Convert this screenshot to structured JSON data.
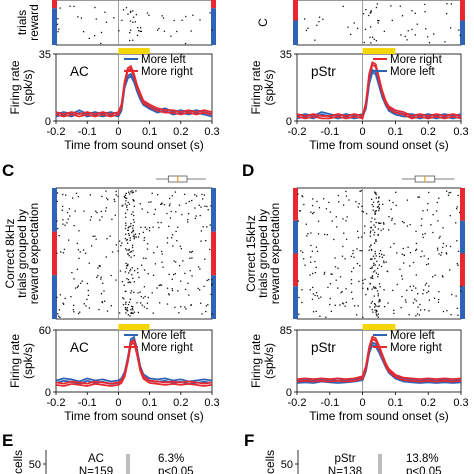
{
  "colors": {
    "left": "#2f63b5",
    "right": "#e8282e",
    "sound_bar": "#f4d60a",
    "dot": "#111111"
  },
  "chart_data": [
    {
      "panel": "",
      "type": "line",
      "region": "AC",
      "raster_ylabel": [
        "",
        "trials",
        "reward"
      ],
      "raster_block_colors": [
        "right",
        "left"
      ],
      "raster_block_sizes": [
        1,
        3
      ],
      "xlabel": "Time from sound onset (s)",
      "ylabel": [
        "Firing rate",
        "(spk/s)"
      ],
      "xlim": [
        -0.2,
        0.3
      ],
      "ylim": [
        0,
        35
      ],
      "xticks": [
        "-0.2",
        "-0.1",
        "0",
        "0.1",
        "0.2",
        "0.3"
      ],
      "yticks": [
        "0",
        "35"
      ],
      "legend": [
        "More left",
        "More right"
      ],
      "sound_bar": [
        0,
        0.1
      ],
      "x": [
        -0.2,
        -0.175,
        -0.15,
        -0.125,
        -0.1,
        -0.075,
        -0.05,
        -0.025,
        0,
        0.01,
        0.02,
        0.03,
        0.04,
        0.05,
        0.06,
        0.07,
        0.08,
        0.1,
        0.125,
        0.15,
        0.175,
        0.2,
        0.225,
        0.25,
        0.275,
        0.3
      ],
      "series": [
        {
          "name": "More left",
          "color": "left",
          "values": [
            3,
            4,
            3,
            5,
            3,
            4,
            3,
            4,
            3,
            6,
            18,
            23,
            24,
            21,
            16,
            12,
            9,
            7,
            5,
            6,
            4,
            5,
            4,
            5,
            4,
            3
          ]
        },
        {
          "name": "More right",
          "color": "right",
          "values": [
            4,
            3,
            4,
            3,
            4,
            3,
            4,
            3,
            4,
            8,
            20,
            27,
            28,
            24,
            18,
            14,
            10,
            8,
            6,
            5,
            5,
            4,
            5,
            4,
            5,
            4
          ]
        }
      ]
    },
    {
      "panel": "",
      "type": "line",
      "region": "pStr",
      "raster_ylabel": [
        "",
        "C"
      ],
      "raster_block_colors": [
        "right",
        "left"
      ],
      "raster_block_sizes": [
        1,
        1
      ],
      "xlabel": "Time from sound onset (s)",
      "ylabel": [
        "Firing rate",
        "(spk/s)"
      ],
      "xlim": [
        -0.2,
        0.3
      ],
      "ylim": [
        0,
        35
      ],
      "xticks": [
        "-0.2",
        "-0.1",
        "0",
        "0.1",
        "0.2",
        "0.3"
      ],
      "yticks": [
        "0",
        "35"
      ],
      "legend": [
        "More right",
        "More left"
      ],
      "sound_bar": [
        0,
        0.1
      ],
      "x": [
        -0.2,
        -0.175,
        -0.15,
        -0.125,
        -0.1,
        -0.075,
        -0.05,
        -0.025,
        0,
        0.01,
        0.02,
        0.03,
        0.04,
        0.05,
        0.06,
        0.07,
        0.08,
        0.1,
        0.125,
        0.15,
        0.175,
        0.2,
        0.225,
        0.25,
        0.275,
        0.3
      ],
      "series": [
        {
          "name": "More left",
          "color": "left",
          "values": [
            2,
            3,
            2,
            4,
            3,
            2,
            3,
            2,
            3,
            7,
            20,
            26,
            25,
            19,
            13,
            9,
            6,
            4,
            3,
            3,
            2,
            3,
            2,
            3,
            2,
            3
          ]
        },
        {
          "name": "More right",
          "color": "right",
          "values": [
            3,
            2,
            3,
            2,
            2,
            3,
            2,
            3,
            2,
            9,
            24,
            30,
            29,
            22,
            15,
            10,
            7,
            5,
            4,
            2,
            3,
            2,
            3,
            2,
            3,
            2
          ]
        }
      ]
    },
    {
      "panel": "C",
      "type": "line",
      "region": "AC",
      "raster_ylabel": [
        "Correct 8kHz",
        "trials grouped by",
        "reward expectation"
      ],
      "raster_block_colors": [
        "left",
        "right",
        "left"
      ],
      "raster_block_sizes": [
        1,
        1,
        1
      ],
      "xlabel": "Time from sound onset (s)",
      "ylabel": [
        "Firing rate",
        "(spk/s)"
      ],
      "xlim": [
        -0.2,
        0.3
      ],
      "ylim": [
        0,
        60
      ],
      "xticks": [
        "-0.2",
        "-0.1",
        "0",
        "0.1",
        "0.2",
        "0.3"
      ],
      "yticks": [
        "0",
        "60"
      ],
      "legend": [
        "More left",
        "More right"
      ],
      "sound_bar": [
        0,
        0.1
      ],
      "x": [
        -0.2,
        -0.175,
        -0.15,
        -0.125,
        -0.1,
        -0.075,
        -0.05,
        -0.025,
        0,
        0.01,
        0.02,
        0.03,
        0.04,
        0.05,
        0.06,
        0.07,
        0.08,
        0.1,
        0.125,
        0.15,
        0.175,
        0.2,
        0.225,
        0.25,
        0.275,
        0.3
      ],
      "series": [
        {
          "name": "More left",
          "color": "left",
          "values": [
            10,
            12,
            11,
            9,
            12,
            10,
            11,
            9,
            10,
            12,
            18,
            32,
            50,
            52,
            40,
            24,
            16,
            12,
            11,
            12,
            10,
            11,
            9,
            10,
            11,
            10
          ]
        },
        {
          "name": "More right",
          "color": "right",
          "values": [
            8,
            7,
            9,
            8,
            7,
            9,
            8,
            7,
            8,
            10,
            16,
            30,
            47,
            49,
            37,
            22,
            14,
            10,
            9,
            8,
            9,
            8,
            9,
            8,
            7,
            8
          ]
        }
      ]
    },
    {
      "panel": "D",
      "type": "line",
      "region": "pStr",
      "raster_ylabel": [
        "Correct 15kHz",
        "trials grouped by",
        "reward expectation"
      ],
      "raster_block_colors": [
        "right",
        "left",
        "right",
        "left"
      ],
      "raster_block_sizes": [
        1,
        1,
        1,
        1
      ],
      "xlabel": "Time from sound onset (s)",
      "ylabel": [
        "Firing rate",
        "(spk/s)"
      ],
      "xlim": [
        -0.2,
        0.3
      ],
      "ylim": [
        0,
        85
      ],
      "xticks": [
        "-0.2",
        "-0.1",
        "0",
        "0.1",
        "0.2",
        "0.3"
      ],
      "yticks": [
        "0",
        "85"
      ],
      "legend": [
        "More left",
        "More right"
      ],
      "sound_bar": [
        0,
        0.1
      ],
      "x": [
        -0.2,
        -0.175,
        -0.15,
        -0.125,
        -0.1,
        -0.075,
        -0.05,
        -0.025,
        0,
        0.01,
        0.02,
        0.03,
        0.04,
        0.05,
        0.06,
        0.07,
        0.08,
        0.1,
        0.125,
        0.15,
        0.175,
        0.2,
        0.225,
        0.25,
        0.275,
        0.3
      ],
      "series": [
        {
          "name": "More left",
          "color": "left",
          "values": [
            14,
            15,
            14,
            16,
            15,
            14,
            15,
            16,
            18,
            30,
            55,
            66,
            64,
            56,
            46,
            36,
            28,
            20,
            16,
            15,
            14,
            15,
            14,
            15,
            14,
            15
          ]
        },
        {
          "name": "More right",
          "color": "right",
          "values": [
            16,
            17,
            16,
            17,
            16,
            17,
            16,
            17,
            20,
            34,
            60,
            74,
            72,
            62,
            50,
            38,
            30,
            22,
            18,
            17,
            16,
            17,
            16,
            17,
            16,
            17
          ]
        }
      ]
    }
  ],
  "bottom_panels": [
    {
      "label": "E",
      "ylabel": "cells",
      "ytick": "50",
      "region": "AC",
      "n_text": "N=159",
      "pct": "6.3%",
      "p_text": "p<0.05"
    },
    {
      "label": "F",
      "ylabel": "cells",
      "ytick": "50",
      "region": "pStr",
      "n_text": "N=138",
      "pct": "13.8%",
      "p_text": "p<0.05"
    }
  ]
}
